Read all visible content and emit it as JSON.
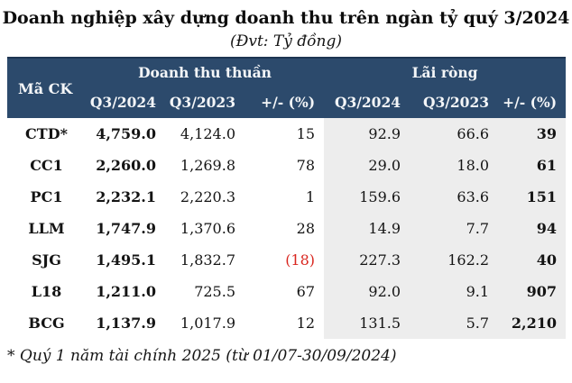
{
  "title": "Doanh nghiệp xây dựng doanh thu trên ngàn tỷ quý 3/2024",
  "subtitle": "(Đvt: Tỷ đồng)",
  "footnote": "* Quý 1 năm tài chính 2025 (từ 01/07-30/09/2024)",
  "colors": {
    "header_bg": "#2c4a6c",
    "header_border": "#1e3552",
    "profit_bg": "#ededed",
    "negative": "#d9261f"
  },
  "chart_data": {
    "type": "table",
    "title": "Doanh nghiệp xây dựng doanh thu trên ngàn tỷ quý 3/2024",
    "unit": "Tỷ đồng",
    "code_header": "Mã CK",
    "groups": [
      {
        "label": "Doanh thu thuần",
        "columns": [
          "Q3/2024",
          "Q3/2023",
          "+/- (%)"
        ]
      },
      {
        "label": "Lãi ròng",
        "columns": [
          "Q3/2024",
          "Q3/2023",
          "+/- (%)"
        ]
      }
    ],
    "rows": [
      {
        "code": "CTD*",
        "rev_2024": "4,759.0",
        "rev_2023": "4,124.0",
        "rev_chg": "15",
        "pro_2024": "92.9",
        "pro_2023": "66.6",
        "pro_chg": "39"
      },
      {
        "code": "CC1",
        "rev_2024": "2,260.0",
        "rev_2023": "1,269.8",
        "rev_chg": "78",
        "pro_2024": "29.0",
        "pro_2023": "18.0",
        "pro_chg": "61"
      },
      {
        "code": "PC1",
        "rev_2024": "2,232.1",
        "rev_2023": "2,220.3",
        "rev_chg": "1",
        "pro_2024": "159.6",
        "pro_2023": "63.6",
        "pro_chg": "151"
      },
      {
        "code": "LLM",
        "rev_2024": "1,747.9",
        "rev_2023": "1,370.6",
        "rev_chg": "28",
        "pro_2024": "14.9",
        "pro_2023": "7.7",
        "pro_chg": "94"
      },
      {
        "code": "SJG",
        "rev_2024": "1,495.1",
        "rev_2023": "1,832.7",
        "rev_chg": "(18)",
        "pro_2024": "227.3",
        "pro_2023": "162.2",
        "pro_chg": "40"
      },
      {
        "code": "L18",
        "rev_2024": "1,211.0",
        "rev_2023": "725.5",
        "rev_chg": "67",
        "pro_2024": "92.0",
        "pro_2023": "9.1",
        "pro_chg": "907"
      },
      {
        "code": "BCG",
        "rev_2024": "1,137.9",
        "rev_2023": "1,017.9",
        "rev_chg": "12",
        "pro_2024": "131.5",
        "pro_2023": "5.7",
        "pro_chg": "2,210"
      }
    ]
  }
}
